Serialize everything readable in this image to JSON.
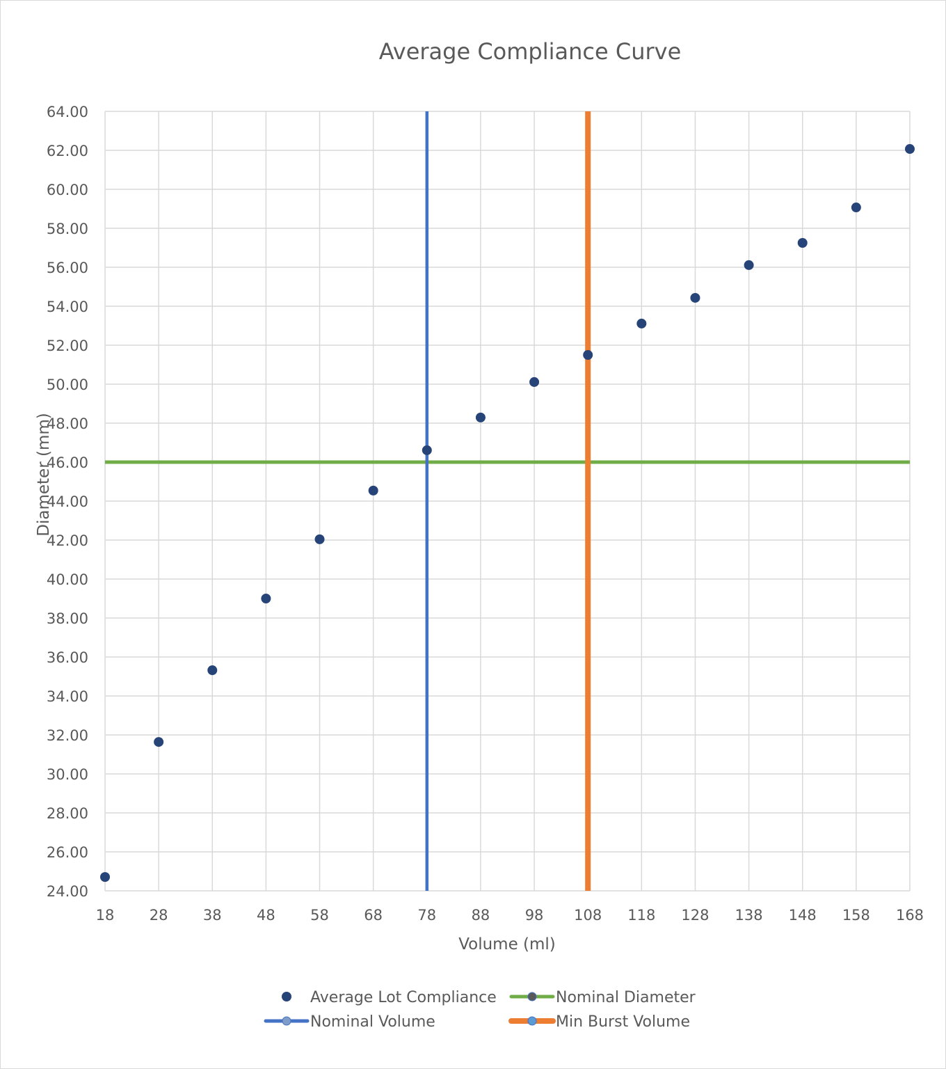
{
  "chart_data": {
    "type": "scatter",
    "title": "Average Compliance Curve",
    "xlabel": "Volume (ml)",
    "ylabel": "Diameter (mm)",
    "xlim": [
      18,
      168
    ],
    "ylim": [
      24,
      64
    ],
    "x_ticks": [
      18,
      28,
      38,
      48,
      58,
      68,
      78,
      88,
      98,
      108,
      118,
      128,
      138,
      148,
      158,
      168
    ],
    "y_ticks": [
      "24.00",
      "26.00",
      "28.00",
      "30.00",
      "32.00",
      "34.00",
      "36.00",
      "38.00",
      "40.00",
      "42.00",
      "44.00",
      "46.00",
      "48.00",
      "50.00",
      "52.00",
      "54.00",
      "56.00",
      "58.00",
      "60.00",
      "62.00",
      "64.00"
    ],
    "grid": true,
    "legend_position": "bottom",
    "series": [
      {
        "name": "Average Lot Compliance",
        "kind": "markers",
        "color": "#264478",
        "x": [
          18,
          28,
          38,
          48,
          58,
          68,
          78,
          88,
          98,
          108,
          118,
          128,
          138,
          148,
          158,
          168
        ],
        "y": [
          24.71,
          31.64,
          35.32,
          39.0,
          42.04,
          44.54,
          46.61,
          48.29,
          50.11,
          51.5,
          53.11,
          54.43,
          56.11,
          57.25,
          59.07,
          62.07
        ]
      },
      {
        "name": "Nominal Diameter",
        "kind": "horizontal-line",
        "color": "#70AD47",
        "marker_color": "#595959",
        "y": 46.0
      },
      {
        "name": "Nominal Volume",
        "kind": "vertical-line",
        "color": "#4472C4",
        "marker_color": "#7F9CC8",
        "x": 78
      },
      {
        "name": "Min Burst Volume",
        "kind": "vertical-line",
        "color": "#ED7D31",
        "marker_color": "#5B9BD5",
        "x": 108
      }
    ]
  }
}
